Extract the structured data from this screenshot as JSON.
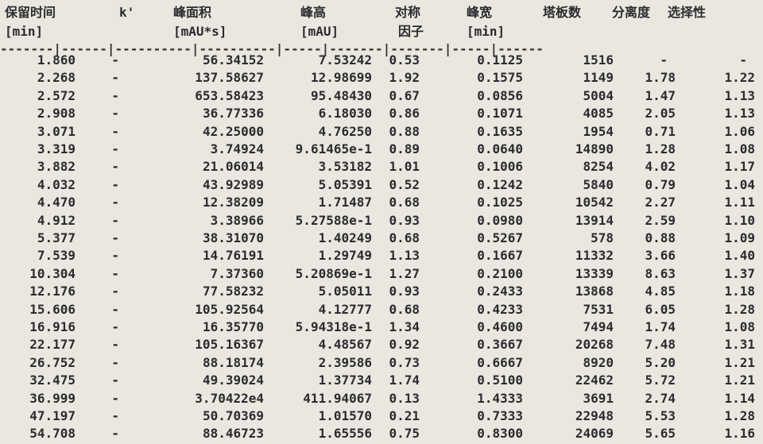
{
  "headers": [
    {
      "line1": "保留时间",
      "line2": "[min]"
    },
    {
      "line1": "k'",
      "line2": ""
    },
    {
      "line1": "峰面积",
      "line2": "[mAU*s]"
    },
    {
      "line1": "峰高",
      "line2": "[mAU]"
    },
    {
      "line1": "对称",
      "line2": "因子"
    },
    {
      "line1": "峰宽",
      "line2": "[min]"
    },
    {
      "line1": "塔板数",
      "line2": ""
    },
    {
      "line1": "分离度",
      "line2": ""
    },
    {
      "line1": "选择性",
      "line2": ""
    }
  ],
  "separator": "-------|------|----------|----------|-----|-------|-------|-----|------",
  "rows": [
    [
      "1.860",
      "-",
      "56.34152",
      "7.53242",
      "0.53",
      "0.1125",
      "1516",
      "-",
      "-"
    ],
    [
      "2.268",
      "-",
      "137.58627",
      "12.98699",
      "1.92",
      "0.1575",
      "1149",
      "1.78",
      "1.22"
    ],
    [
      "2.572",
      "-",
      "653.58423",
      "95.48430",
      "0.67",
      "0.0856",
      "5004",
      "1.47",
      "1.13"
    ],
    [
      "2.908",
      "-",
      "36.77336",
      "6.18030",
      "0.86",
      "0.1071",
      "4085",
      "2.05",
      "1.13"
    ],
    [
      "3.071",
      "-",
      "42.25000",
      "4.76250",
      "0.88",
      "0.1635",
      "1954",
      "0.71",
      "1.06"
    ],
    [
      "3.319",
      "-",
      "3.74924",
      "9.61465e-1",
      "0.89",
      "0.0640",
      "14890",
      "1.28",
      "1.08"
    ],
    [
      "3.882",
      "-",
      "21.06014",
      "3.53182",
      "1.01",
      "0.1006",
      "8254",
      "4.02",
      "1.17"
    ],
    [
      "4.032",
      "-",
      "43.92989",
      "5.05391",
      "0.52",
      "0.1242",
      "5840",
      "0.79",
      "1.04"
    ],
    [
      "4.470",
      "-",
      "12.38209",
      "1.71487",
      "0.68",
      "0.1025",
      "10542",
      "2.27",
      "1.11"
    ],
    [
      "4.912",
      "-",
      "3.38966",
      "5.27588e-1",
      "0.93",
      "0.0980",
      "13914",
      "2.59",
      "1.10"
    ],
    [
      "5.377",
      "-",
      "38.31070",
      "1.40249",
      "0.68",
      "0.5267",
      "578",
      "0.88",
      "1.09"
    ],
    [
      "7.539",
      "-",
      "14.76191",
      "1.29749",
      "1.13",
      "0.1667",
      "11332",
      "3.66",
      "1.40"
    ],
    [
      "10.304",
      "-",
      "7.37360",
      "5.20869e-1",
      "1.27",
      "0.2100",
      "13339",
      "8.63",
      "1.37"
    ],
    [
      "12.176",
      "-",
      "77.58232",
      "5.05011",
      "0.93",
      "0.2433",
      "13868",
      "4.85",
      "1.18"
    ],
    [
      "15.606",
      "-",
      "105.92564",
      "4.12777",
      "0.68",
      "0.4233",
      "7531",
      "6.05",
      "1.28"
    ],
    [
      "16.916",
      "-",
      "16.35770",
      "5.94318e-1",
      "1.34",
      "0.4600",
      "7494",
      "1.74",
      "1.08"
    ],
    [
      "22.177",
      "-",
      "105.16367",
      "4.48567",
      "0.92",
      "0.3667",
      "20268",
      "7.48",
      "1.31"
    ],
    [
      "26.752",
      "-",
      "88.18174",
      "2.39586",
      "0.73",
      "0.6667",
      "8920",
      "5.20",
      "1.21"
    ],
    [
      "32.475",
      "-",
      "49.39024",
      "1.37734",
      "1.74",
      "0.5100",
      "22462",
      "5.72",
      "1.21"
    ],
    [
      "36.999",
      "-",
      "3.70422e4",
      "411.94067",
      "0.13",
      "1.4333",
      "3691",
      "2.74",
      "1.14"
    ],
    [
      "47.197",
      "-",
      "50.70369",
      "1.01570",
      "0.21",
      "0.7333",
      "22948",
      "5.53",
      "1.28"
    ],
    [
      "54.708",
      "-",
      "88.46723",
      "1.65556",
      "0.75",
      "0.8300",
      "24069",
      "5.65",
      "1.16"
    ]
  ]
}
